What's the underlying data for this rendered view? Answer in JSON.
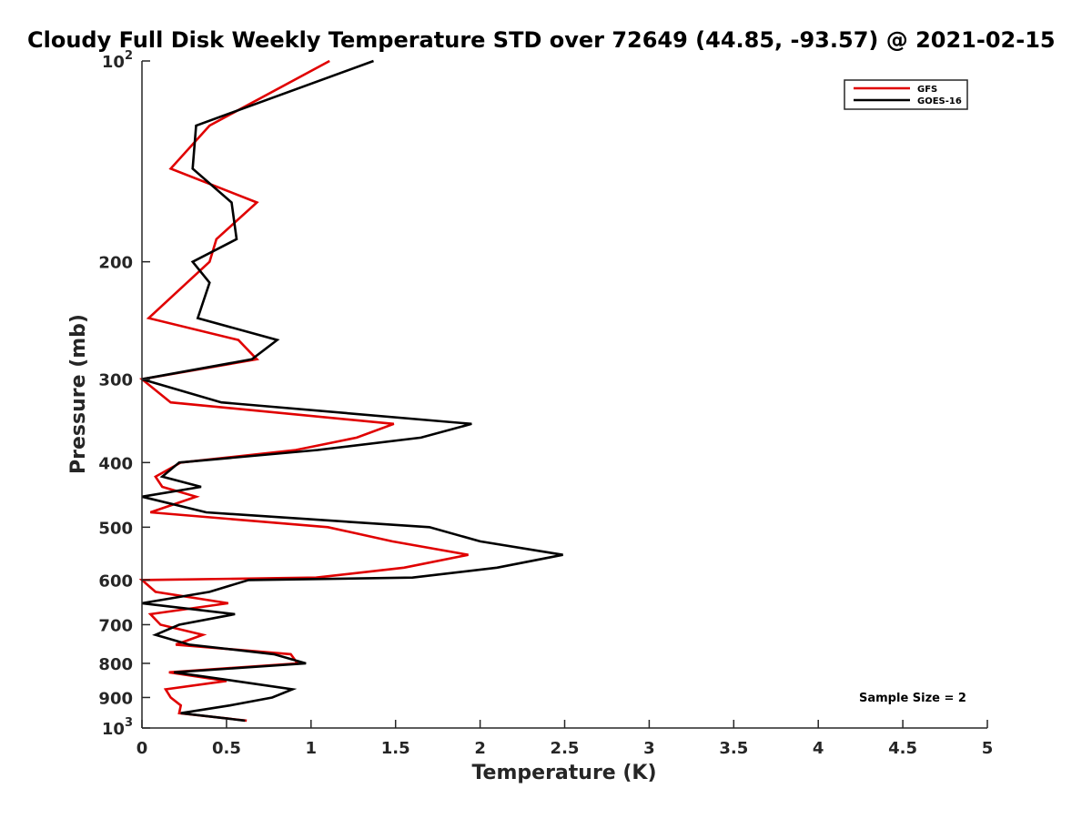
{
  "chart_data": {
    "type": "line",
    "title": "Cloudy Full Disk Weekly Temperature STD over 72649 (44.85, -93.57) @ 2021-02-15",
    "xlabel": "Temperature (K)",
    "ylabel": "Pressure (mb)",
    "xlim": [
      0,
      5
    ],
    "ylim": [
      100,
      1000
    ],
    "yscale": "log",
    "y_reversed": true,
    "grid": false,
    "legend_position": "top-right",
    "xticks": [
      "0",
      "0.5",
      "1",
      "1.5",
      "2",
      "2.5",
      "3",
      "3.5",
      "4",
      "4.5",
      "5"
    ],
    "yticks": [
      {
        "value": 100,
        "base": "10",
        "exp": "2"
      },
      {
        "value": 200,
        "label": "200"
      },
      {
        "value": 300,
        "label": "300"
      },
      {
        "value": 400,
        "label": "400"
      },
      {
        "value": 500,
        "label": "500"
      },
      {
        "value": 600,
        "label": "600"
      },
      {
        "value": 700,
        "label": "700"
      },
      {
        "value": 800,
        "label": "800"
      },
      {
        "value": 900,
        "label": "900"
      },
      {
        "value": 1000,
        "base": "10",
        "exp": "3"
      }
    ],
    "annotation": "Sample Size = 2",
    "series": [
      {
        "name": "GFS",
        "color": "#e00000",
        "points": [
          [
            1.11,
            100
          ],
          [
            0.4,
            125
          ],
          [
            0.17,
            145
          ],
          [
            0.68,
            163
          ],
          [
            0.44,
            185
          ],
          [
            0.4,
            200
          ],
          [
            0.04,
            243
          ],
          [
            0.57,
            262
          ],
          [
            0.68,
            280
          ],
          [
            0.0,
            300
          ],
          [
            0.17,
            325
          ],
          [
            1.49,
            350
          ],
          [
            1.27,
            367
          ],
          [
            0.91,
            383
          ],
          [
            0.23,
            400
          ],
          [
            0.08,
            420
          ],
          [
            0.12,
            435
          ],
          [
            0.32,
            450
          ],
          [
            0.05,
            475
          ],
          [
            1.1,
            500
          ],
          [
            1.48,
            525
          ],
          [
            1.93,
            550
          ],
          [
            1.55,
            575
          ],
          [
            1.03,
            595
          ],
          [
            0.0,
            600
          ],
          [
            0.08,
            625
          ],
          [
            0.51,
            650
          ],
          [
            0.05,
            675
          ],
          [
            0.11,
            700
          ],
          [
            0.36,
            725
          ],
          [
            0.2,
            750
          ],
          [
            0.88,
            775
          ],
          [
            0.92,
            800
          ],
          [
            0.16,
            825
          ],
          [
            0.5,
            850
          ],
          [
            0.14,
            875
          ],
          [
            0.17,
            900
          ],
          [
            0.23,
            925
          ],
          [
            0.22,
            950
          ],
          [
            0.62,
            975
          ]
        ]
      },
      {
        "name": "GOES-16",
        "color": "#000000",
        "points": [
          [
            1.37,
            100
          ],
          [
            0.32,
            125
          ],
          [
            0.3,
            145
          ],
          [
            0.53,
            163
          ],
          [
            0.56,
            185
          ],
          [
            0.3,
            200
          ],
          [
            0.4,
            215
          ],
          [
            0.33,
            243
          ],
          [
            0.8,
            262
          ],
          [
            0.65,
            280
          ],
          [
            0.0,
            300
          ],
          [
            0.47,
            325
          ],
          [
            1.95,
            350
          ],
          [
            1.65,
            367
          ],
          [
            1.04,
            383
          ],
          [
            0.22,
            400
          ],
          [
            0.12,
            420
          ],
          [
            0.35,
            435
          ],
          [
            0.0,
            450
          ],
          [
            0.38,
            475
          ],
          [
            1.7,
            500
          ],
          [
            2.0,
            525
          ],
          [
            2.49,
            550
          ],
          [
            2.1,
            575
          ],
          [
            1.6,
            595
          ],
          [
            0.63,
            600
          ],
          [
            0.4,
            625
          ],
          [
            0.0,
            650
          ],
          [
            0.55,
            675
          ],
          [
            0.22,
            700
          ],
          [
            0.08,
            725
          ],
          [
            0.28,
            750
          ],
          [
            0.78,
            775
          ],
          [
            0.97,
            800
          ],
          [
            0.19,
            825
          ],
          [
            0.55,
            850
          ],
          [
            0.89,
            875
          ],
          [
            0.77,
            900
          ],
          [
            0.52,
            925
          ],
          [
            0.23,
            950
          ],
          [
            0.61,
            975
          ]
        ]
      }
    ]
  }
}
